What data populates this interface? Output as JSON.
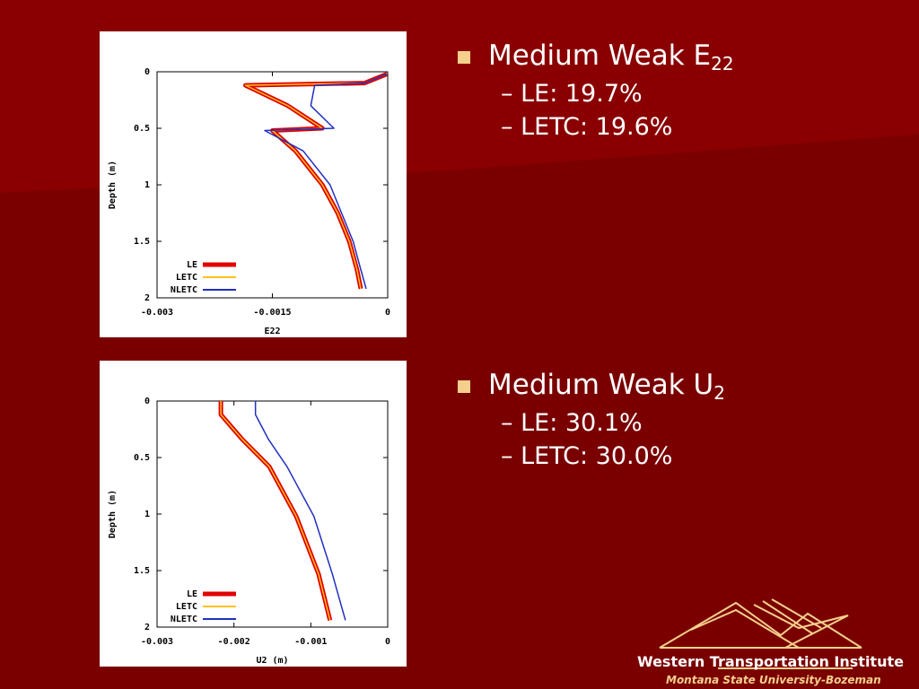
{
  "chart_data": [
    {
      "type": "line",
      "xlabel": "E22",
      "ylabel": "Depth (m)",
      "xlim": [
        -0.003,
        0
      ],
      "xticks": [
        -0.003,
        -0.0015,
        0
      ],
      "ylim": [
        0,
        2
      ],
      "yticks": [
        0,
        0.5,
        1,
        1.5,
        2
      ],
      "y_inverted": true,
      "legend": "bottom-left",
      "depth": [
        0.02,
        0.1,
        0.12,
        0.3,
        0.5,
        0.52,
        0.7,
        1.0,
        1.25,
        1.5,
        1.75,
        1.92
      ],
      "series": [
        {
          "name": "LE",
          "color": "#e00000",
          "values": [
            -1e-05,
            -0.0003,
            -0.00185,
            -0.0013,
            -0.00085,
            -0.0015,
            -0.0012,
            -0.00085,
            -0.00065,
            -0.0005,
            -0.0004,
            -0.00035
          ]
        },
        {
          "name": "LETC",
          "color": "#ffc020",
          "values": [
            -1e-05,
            -0.0003,
            -0.00185,
            -0.0013,
            -0.00085,
            -0.0015,
            -0.0012,
            -0.00085,
            -0.00065,
            -0.0005,
            -0.0004,
            -0.00035
          ]
        },
        {
          "name": "NLETC",
          "color": "#2030c0",
          "values": [
            -1e-05,
            -0.0003,
            -0.00095,
            -0.001,
            -0.0007,
            -0.0016,
            -0.0011,
            -0.00075,
            -0.0006,
            -0.00045,
            -0.00035,
            -0.00028
          ]
        }
      ]
    },
    {
      "type": "line",
      "xlabel": "U2 (m)",
      "ylabel": "Depth (m)",
      "xlim": [
        -0.003,
        0
      ],
      "xticks": [
        -0.003,
        -0.002,
        -0.001,
        0
      ],
      "ylim": [
        0,
        2
      ],
      "yticks": [
        0,
        0.5,
        1,
        1.5,
        2
      ],
      "y_inverted": true,
      "legend": "bottom-left",
      "depth": [
        0,
        0.12,
        0.34,
        0.58,
        1.02,
        1.53,
        1.94
      ],
      "series": [
        {
          "name": "LE",
          "color": "#e00000",
          "values": [
            -0.00217,
            -0.00217,
            -0.00189,
            -0.00154,
            -0.00119,
            -0.0009,
            -0.00075
          ]
        },
        {
          "name": "LETC",
          "color": "#ffc020",
          "values": [
            -0.00217,
            -0.00217,
            -0.00189,
            -0.00154,
            -0.00119,
            -0.0009,
            -0.00075
          ]
        },
        {
          "name": "NLETC",
          "color": "#2030c0",
          "values": [
            -0.00172,
            -0.00172,
            -0.00155,
            -0.00131,
            -0.00096,
            -0.00072,
            -0.00055
          ]
        }
      ]
    }
  ],
  "bullets": [
    {
      "text": "Medium Weak E",
      "sub": "22",
      "items": [
        "LE: 19.7%",
        "LETC: 19.6%"
      ]
    },
    {
      "text": "Medium Weak U",
      "sub": "2",
      "items": [
        "LE: 30.1%",
        "LETC: 30.0%"
      ]
    }
  ],
  "logo": {
    "title": "Western Transportation Institute",
    "subtitle": "Montana State University-Bozeman"
  }
}
